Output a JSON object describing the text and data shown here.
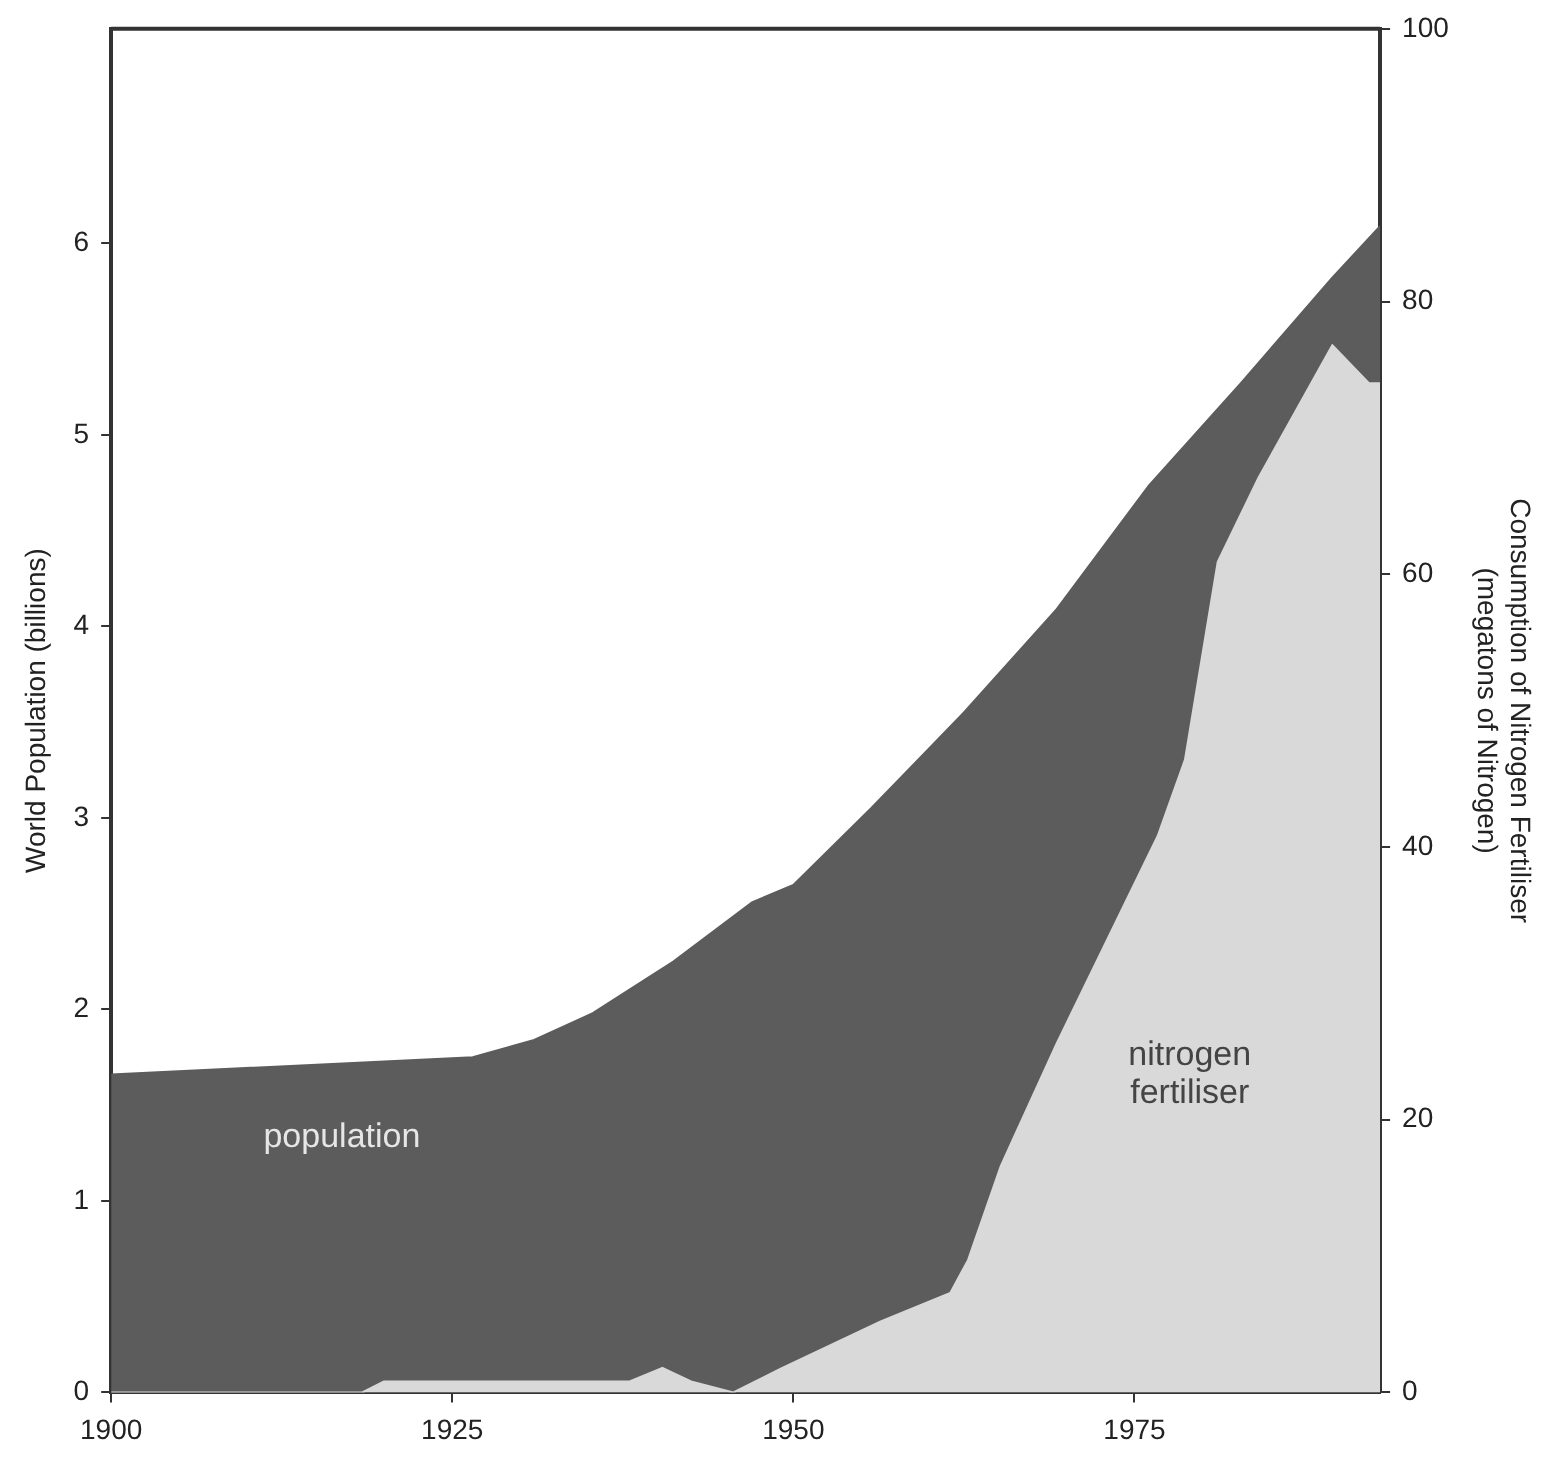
{
  "chart_data": {
    "type": "area",
    "xlabel": null,
    "ylabel": "World Population (billions)",
    "y2label": "Consumption of Nitrogen Fertiliser\n(megatons of Nitrogen)",
    "xlim": [
      1900,
      1993
    ],
    "xticks": [
      1900,
      1925,
      1950,
      1975
    ],
    "ylim": [
      0,
      7.12
    ],
    "yticks": [
      0,
      1,
      2,
      3,
      4,
      5,
      6
    ],
    "y2lim": [
      0,
      100
    ],
    "y2ticks": [
      0,
      20,
      40,
      60,
      80,
      100
    ],
    "grid": false,
    "legend": false,
    "marker": "none",
    "series": [
      {
        "name": "population",
        "color": "#5c5c5c",
        "x": [
          1900,
          1926.5,
          1931,
          1935.3,
          1941.2,
          1947,
          1950,
          1955.7,
          1962.5,
          1969.3,
          1976,
          1982.8,
          1989.5,
          1993
        ],
        "values": [
          1.66,
          1.75,
          1.84,
          1.98,
          2.25,
          2.56,
          2.65,
          3.05,
          3.55,
          4.09,
          4.73,
          5.27,
          5.82,
          6.09
        ]
      },
      {
        "name": "nitrogen fertiliser",
        "color": "#d9d9d9",
        "axis": "y2",
        "x": [
          1900,
          1918.4,
          1920,
          1938,
          1940.4,
          1942.5,
          1945.6,
          1949,
          1956.4,
          1961.5,
          1962.8,
          1965.2,
          1969.3,
          1976.7,
          1978.7,
          1981.1,
          1984.1,
          1989.5,
          1992.2,
          1993
        ],
        "values": [
          0,
          0,
          0.8,
          0.8,
          1.8,
          0.8,
          0,
          1.7,
          5.2,
          7.3,
          9.7,
          16.6,
          25.6,
          40.8,
          46.4,
          60.9,
          67.1,
          76.8,
          74,
          74
        ]
      }
    ]
  }
}
